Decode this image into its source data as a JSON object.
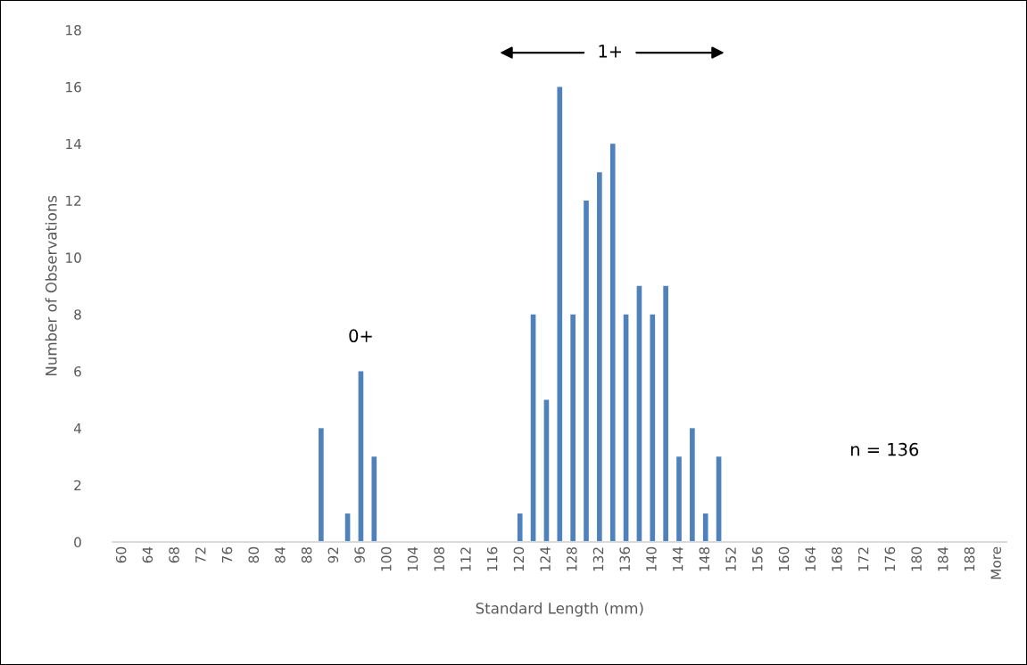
{
  "chart_data": {
    "type": "bar",
    "xlabel": "Standard Length (mm)",
    "ylabel": "Number of Observations",
    "categories": [
      "60",
      null,
      "64",
      null,
      "68",
      null,
      "72",
      null,
      "76",
      null,
      "80",
      null,
      "84",
      null,
      "88",
      null,
      "92",
      null,
      "96",
      null,
      "100",
      null,
      "104",
      null,
      "108",
      null,
      "112",
      null,
      "116",
      null,
      "120",
      null,
      "124",
      null,
      "128",
      null,
      "132",
      null,
      "136",
      null,
      "140",
      null,
      "144",
      null,
      "148",
      null,
      "152",
      null,
      "156",
      null,
      "160",
      null,
      "164",
      null,
      "168",
      null,
      "172",
      null,
      "176",
      null,
      "180",
      null,
      "184",
      null,
      "188",
      null,
      "More"
    ],
    "values": [
      0,
      0,
      0,
      0,
      0,
      0,
      0,
      0,
      0,
      0,
      0,
      0,
      0,
      0,
      0,
      4,
      0,
      1,
      6,
      3,
      0,
      0,
      0,
      0,
      0,
      0,
      0,
      0,
      0,
      0,
      1,
      8,
      5,
      16,
      8,
      12,
      13,
      14,
      8,
      9,
      8,
      9,
      3,
      4,
      1,
      3,
      0,
      0,
      0,
      0,
      0,
      0,
      0,
      0,
      0,
      0,
      0,
      0,
      0,
      0,
      0,
      0,
      0,
      0,
      0,
      0,
      0
    ],
    "color": "#4f81bd",
    "ylim": [
      0,
      18
    ],
    "yticks": [
      0,
      2,
      4,
      6,
      8,
      10,
      12,
      14,
      16,
      18
    ],
    "grid": false,
    "legend": false,
    "annotations": [
      "0+",
      "1+",
      "n = 136"
    ]
  }
}
